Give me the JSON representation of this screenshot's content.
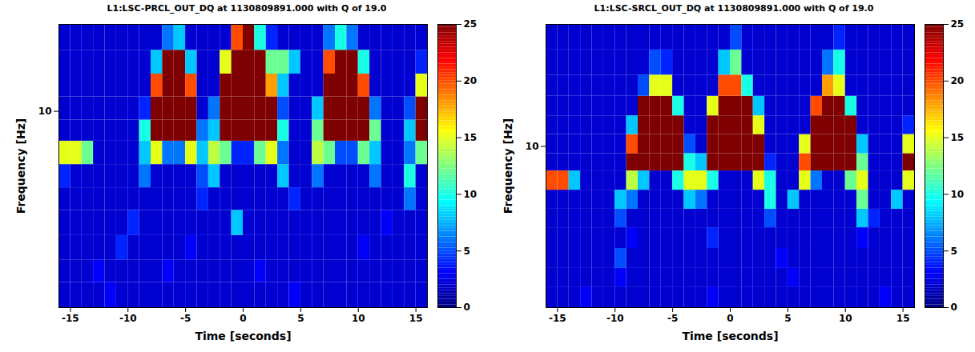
{
  "chart_data": [
    {
      "type": "heatmap",
      "title": "L1:LSC-PRCL_OUT_DQ at 1130809891.000 with Q of 19.0",
      "x_label": "Time [seconds]",
      "y_label": "Frequency [Hz]",
      "log": "y",
      "xlim": [
        -16,
        16
      ],
      "xticks": [
        -15,
        -10,
        -5,
        0,
        5,
        10,
        15
      ],
      "ylim": [
        4,
        15
      ],
      "yticks": [
        10
      ],
      "x_edges": [
        -16,
        -15,
        -14,
        -13,
        -12,
        -11,
        -10,
        -9,
        -8,
        -7,
        -6,
        -5,
        -4,
        -3,
        -2,
        -1,
        0,
        1,
        2,
        3,
        4,
        5,
        6,
        7,
        8,
        9,
        10,
        11,
        12,
        13,
        14,
        15,
        16
      ],
      "y_edges": [
        4,
        4.5,
        5,
        5.6,
        6.3,
        7,
        7.8,
        8.7,
        9.6,
        10.7,
        11.9,
        13.3,
        15
      ],
      "cells": [
        [
          2,
          2,
          2,
          2,
          3,
          2,
          2,
          2,
          2,
          2,
          2,
          2,
          2,
          2,
          2,
          2,
          2,
          2,
          2,
          2,
          3,
          2,
          2,
          2,
          2,
          2,
          2,
          2,
          2,
          2,
          2,
          2
        ],
        [
          2,
          2,
          2,
          3,
          2,
          2,
          2,
          2,
          2,
          3,
          2,
          2,
          2,
          2,
          2,
          2,
          2,
          3,
          2,
          2,
          2,
          2,
          2,
          2,
          2,
          2,
          2,
          2,
          2,
          2,
          2,
          2
        ],
        [
          2,
          2,
          2,
          2,
          2,
          4,
          2,
          2,
          2,
          2,
          2,
          3,
          2,
          2,
          2,
          2,
          2,
          2,
          2,
          2,
          2,
          2,
          2,
          2,
          2,
          2,
          3,
          2,
          2,
          2,
          2,
          2
        ],
        [
          2,
          2,
          2,
          2,
          2,
          2,
          4,
          2,
          2,
          2,
          2,
          2,
          2,
          2,
          2,
          8,
          2,
          2,
          2,
          2,
          2,
          2,
          2,
          2,
          2,
          2,
          2,
          2,
          3,
          2,
          2,
          2
        ],
        [
          2,
          2,
          2,
          2,
          2,
          2,
          2,
          2,
          2,
          2,
          2,
          2,
          4,
          2,
          2,
          2,
          2,
          2,
          2,
          2,
          4,
          2,
          2,
          2,
          2,
          2,
          2,
          2,
          2,
          2,
          6,
          2
        ],
        [
          4,
          2,
          2,
          2,
          2,
          2,
          2,
          6,
          2,
          2,
          2,
          2,
          5,
          8,
          2,
          2,
          2,
          2,
          2,
          8,
          2,
          2,
          6,
          2,
          2,
          2,
          2,
          6,
          2,
          2,
          10,
          2
        ],
        [
          15,
          15,
          12,
          2,
          2,
          2,
          2,
          8,
          15,
          6,
          6,
          15,
          8,
          14,
          12,
          4,
          4,
          12,
          15,
          6,
          2,
          2,
          14,
          12,
          5,
          5,
          12,
          8,
          2,
          2,
          6,
          12
        ],
        [
          2,
          2,
          2,
          2,
          2,
          2,
          2,
          10,
          25,
          25,
          25,
          25,
          6,
          8,
          25,
          25,
          25,
          25,
          25,
          10,
          2,
          2,
          12,
          25,
          25,
          25,
          25,
          12,
          2,
          2,
          8,
          25
        ],
        [
          2,
          2,
          2,
          2,
          2,
          2,
          2,
          4,
          25,
          25,
          25,
          25,
          2,
          6,
          25,
          25,
          25,
          25,
          25,
          5,
          2,
          2,
          8,
          25,
          25,
          25,
          25,
          6,
          2,
          2,
          5,
          25
        ],
        [
          2,
          2,
          2,
          2,
          2,
          2,
          2,
          2,
          20,
          25,
          25,
          20,
          2,
          2,
          25,
          25,
          25,
          25,
          18,
          8,
          2,
          2,
          2,
          25,
          25,
          25,
          20,
          2,
          2,
          2,
          2,
          15
        ],
        [
          2,
          2,
          2,
          2,
          2,
          2,
          2,
          2,
          8,
          25,
          25,
          8,
          2,
          2,
          15,
          25,
          25,
          25,
          12,
          12,
          8,
          2,
          2,
          20,
          25,
          25,
          10,
          2,
          2,
          2,
          2,
          4
        ],
        [
          2,
          2,
          2,
          2,
          2,
          2,
          2,
          2,
          2,
          6,
          8,
          2,
          2,
          2,
          2,
          20,
          25,
          10,
          4,
          2,
          2,
          2,
          2,
          6,
          10,
          6,
          2,
          2,
          2,
          2,
          2,
          2
        ]
      ],
      "colorbar_range": [
        0,
        25
      ],
      "colorbar_ticks": [
        0,
        5,
        10,
        15,
        20,
        25
      ]
    },
    {
      "type": "heatmap",
      "title": "L1:LSC-SRCL_OUT_DQ at 1130809891.000 with Q of 19.0",
      "x_label": "Time [seconds]",
      "y_label": "Frequency [Hz]",
      "log": "y",
      "xlim": [
        -16,
        16
      ],
      "xticks": [
        -15,
        -10,
        -5,
        0,
        5,
        10,
        15
      ],
      "ylim": [
        4,
        20
      ],
      "yticks": [
        10
      ],
      "x_edges": [
        -16,
        -15,
        -14,
        -13,
        -12,
        -11,
        -10,
        -9,
        -8,
        -7,
        -6,
        -5,
        -4,
        -3,
        -2,
        -1,
        0,
        1,
        2,
        3,
        4,
        5,
        6,
        7,
        8,
        9,
        10,
        11,
        12,
        13,
        14,
        15,
        16
      ],
      "y_edges": [
        4,
        4.5,
        5,
        5.6,
        6.3,
        7,
        7.8,
        8.7,
        9.6,
        10.7,
        11.9,
        13.3,
        15,
        17.3,
        20
      ],
      "cells": [
        [
          2,
          2,
          2,
          3,
          2,
          2,
          2,
          2,
          2,
          2,
          2,
          2,
          2,
          2,
          3,
          2,
          2,
          2,
          2,
          2,
          2,
          2,
          2,
          2,
          2,
          2,
          2,
          2,
          2,
          3,
          2,
          2
        ],
        [
          2,
          2,
          2,
          2,
          2,
          2,
          3,
          2,
          2,
          2,
          2,
          2,
          2,
          2,
          2,
          2,
          2,
          2,
          2,
          2,
          2,
          3,
          2,
          2,
          2,
          2,
          2,
          2,
          2,
          2,
          2,
          2
        ],
        [
          2,
          2,
          2,
          2,
          2,
          2,
          5,
          2,
          2,
          2,
          2,
          2,
          2,
          2,
          2,
          2,
          2,
          2,
          2,
          2,
          3,
          2,
          2,
          2,
          2,
          2,
          2,
          2,
          2,
          2,
          2,
          2
        ],
        [
          2,
          2,
          2,
          2,
          2,
          2,
          2,
          3,
          2,
          2,
          2,
          2,
          2,
          2,
          4,
          2,
          2,
          2,
          2,
          2,
          2,
          2,
          2,
          2,
          2,
          2,
          2,
          3,
          2,
          2,
          2,
          2
        ],
        [
          2,
          2,
          2,
          2,
          2,
          2,
          5,
          2,
          2,
          2,
          2,
          2,
          2,
          2,
          2,
          2,
          2,
          2,
          2,
          5,
          2,
          2,
          2,
          2,
          2,
          2,
          2,
          8,
          4,
          2,
          2,
          2
        ],
        [
          2,
          2,
          2,
          2,
          2,
          2,
          8,
          6,
          2,
          2,
          2,
          2,
          8,
          6,
          2,
          2,
          2,
          2,
          2,
          10,
          2,
          8,
          2,
          2,
          2,
          2,
          2,
          12,
          2,
          2,
          8,
          2
        ],
        [
          20,
          20,
          8,
          2,
          2,
          2,
          2,
          14,
          8,
          2,
          2,
          10,
          15,
          15,
          10,
          2,
          2,
          2,
          15,
          10,
          2,
          2,
          15,
          6,
          2,
          2,
          12,
          15,
          2,
          2,
          2,
          15
        ],
        [
          2,
          2,
          2,
          2,
          2,
          2,
          2,
          25,
          25,
          25,
          25,
          25,
          10,
          8,
          25,
          25,
          25,
          25,
          25,
          4,
          2,
          2,
          20,
          25,
          25,
          25,
          25,
          12,
          2,
          2,
          2,
          25
        ],
        [
          2,
          2,
          2,
          2,
          2,
          2,
          2,
          20,
          25,
          25,
          25,
          25,
          5,
          2,
          25,
          25,
          25,
          25,
          25,
          2,
          2,
          2,
          15,
          25,
          25,
          25,
          25,
          8,
          2,
          2,
          2,
          15
        ],
        [
          2,
          2,
          2,
          2,
          2,
          2,
          2,
          8,
          25,
          25,
          25,
          25,
          2,
          2,
          25,
          25,
          25,
          25,
          15,
          2,
          2,
          2,
          2,
          25,
          25,
          25,
          25,
          2,
          2,
          2,
          2,
          4
        ],
        [
          2,
          2,
          2,
          2,
          2,
          2,
          2,
          2,
          25,
          25,
          25,
          10,
          2,
          2,
          15,
          25,
          25,
          25,
          8,
          2,
          2,
          2,
          2,
          20,
          25,
          25,
          10,
          2,
          2,
          2,
          2,
          2
        ],
        [
          2,
          2,
          2,
          2,
          2,
          2,
          2,
          2,
          5,
          15,
          15,
          2,
          2,
          2,
          2,
          20,
          20,
          10,
          2,
          2,
          2,
          2,
          2,
          2,
          18,
          15,
          2,
          2,
          2,
          2,
          2,
          2
        ],
        [
          2,
          2,
          2,
          2,
          2,
          2,
          2,
          2,
          2,
          5,
          4,
          2,
          2,
          2,
          2,
          8,
          12,
          2,
          2,
          2,
          2,
          2,
          2,
          2,
          6,
          10,
          2,
          2,
          2,
          2,
          2,
          2
        ],
        [
          2,
          2,
          2,
          2,
          2,
          2,
          2,
          2,
          2,
          2,
          2,
          2,
          2,
          2,
          2,
          2,
          5,
          2,
          2,
          2,
          2,
          2,
          2,
          2,
          2,
          4,
          2,
          2,
          2,
          2,
          2,
          2
        ]
      ],
      "colorbar_range": [
        0,
        25
      ],
      "colorbar_ticks": [
        0,
        5,
        10,
        15,
        20,
        25
      ]
    }
  ]
}
